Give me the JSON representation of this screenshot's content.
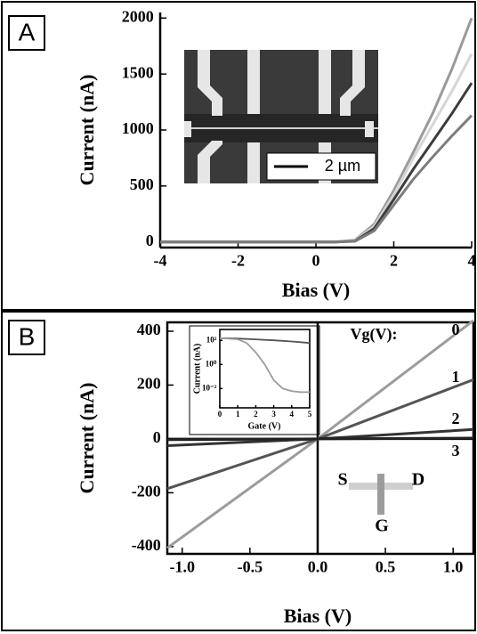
{
  "chart_data": [
    {
      "type": "line",
      "panel_label": "A",
      "x_label": "Bias (V)",
      "y_label": "Current (nA)",
      "inset_scale_label": "2 µm",
      "x": [
        -4,
        -3,
        -2,
        -1,
        0,
        0.5,
        1,
        1.5,
        2,
        2.5,
        3,
        3.5,
        4
      ],
      "series": [
        {
          "color": "#9a9a9a",
          "values": [
            0,
            0,
            0,
            0,
            0,
            0,
            15,
            160,
            460,
            800,
            1150,
            1550,
            2000
          ]
        },
        {
          "color": "#d6d6d6",
          "values": [
            0,
            0,
            0,
            0,
            0,
            0,
            12,
            140,
            420,
            750,
            1050,
            1350,
            1680
          ]
        },
        {
          "color": "#3c3c3c",
          "values": [
            0,
            0,
            0,
            0,
            0,
            0,
            8,
            120,
            380,
            650,
            900,
            1150,
            1420
          ]
        },
        {
          "color": "#7c7c7c",
          "values": [
            0,
            0,
            0,
            0,
            0,
            0,
            6,
            100,
            330,
            560,
            760,
            950,
            1130
          ]
        }
      ],
      "xlim": [
        -4,
        4
      ],
      "ylim": [
        -50,
        2050
      ],
      "xticks": [
        -4,
        -2,
        0,
        2,
        4
      ],
      "yticks": [
        0,
        500,
        1000,
        1500,
        2000
      ]
    },
    {
      "type": "line",
      "panel_label": "B",
      "x_label": "Bias (V)",
      "y_label": "Current (nA)",
      "legend_title": "Vg(V):",
      "diagram_labels": [
        "S",
        "D",
        "G"
      ],
      "x": [
        -1.11,
        0,
        1.15
      ],
      "series": [
        {
          "name": "0",
          "color": "#9c9c9c",
          "values": [
            -405,
            0,
            440
          ]
        },
        {
          "name": "1",
          "color": "#555555",
          "values": [
            -185,
            0,
            220
          ]
        },
        {
          "name": "2",
          "color": "#333333",
          "values": [
            -25,
            0,
            35
          ]
        },
        {
          "name": "3",
          "color": "#222222",
          "values": [
            -3,
            0,
            3
          ]
        }
      ],
      "xlim": [
        -1.11,
        1.15
      ],
      "ylim": [
        -427,
        433
      ],
      "xticks": [
        {
          "value": -1,
          "label": "-1.0"
        },
        -0.5,
        {
          "value": 0,
          "label": "0.0"
        },
        0.5,
        {
          "value": 1,
          "label": "1.0"
        }
      ],
      "yticks": [
        -400,
        -200,
        0,
        200,
        400
      ],
      "zero_lines": true
    },
    {
      "type": "line",
      "x_label": "Gate (V)",
      "y_label": "Current (nA)",
      "log_y": true,
      "x": [
        0,
        0.5,
        1,
        1.5,
        2,
        2.5,
        3,
        3.5,
        4,
        4.5,
        5
      ],
      "series": [
        {
          "color": "#555555",
          "values": [
            150,
            150,
            140,
            130,
            120,
            110,
            100,
            90,
            80,
            70,
            60
          ]
        },
        {
          "color": "#9c9c9c",
          "values": [
            150,
            140,
            120,
            60,
            10,
            1,
            0.05,
            0.01,
            0.006,
            0.005,
            0.005
          ]
        }
      ],
      "xlim": [
        0,
        5
      ],
      "ylim": [
        0.00025,
        800
      ],
      "xticks": [
        0,
        1,
        2,
        3,
        4,
        5
      ],
      "yticks": [
        {
          "value": 0.01,
          "label": "10⁻²"
        },
        {
          "value": 1,
          "label": "10⁰"
        },
        {
          "value": 100,
          "label": "10²"
        }
      ]
    }
  ]
}
